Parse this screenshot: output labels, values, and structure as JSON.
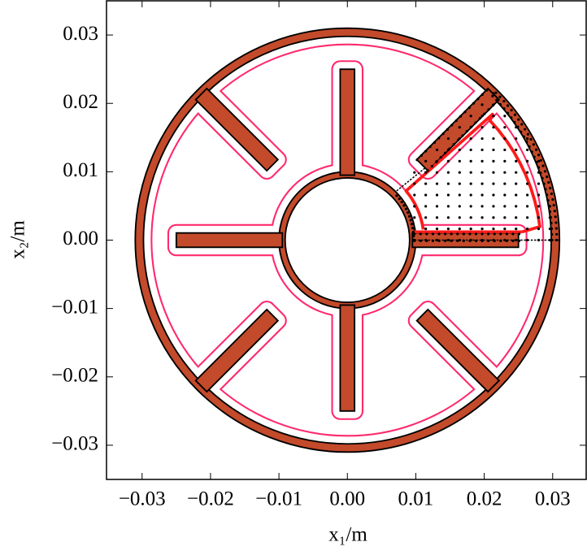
{
  "chart_data": {
    "type": "geometry",
    "xlabel": "x₁/m",
    "ylabel": "x₂/m",
    "xlim": [
      -0.0352,
      0.0349
    ],
    "ylim": [
      -0.035,
      0.035
    ],
    "xticks": [
      {
        "value": -0.03,
        "label": "−0.03"
      },
      {
        "value": -0.02,
        "label": "−0.02"
      },
      {
        "value": -0.01,
        "label": "−0.01"
      },
      {
        "value": 0,
        "label": "0.00"
      },
      0.01,
      0.02,
      0.03
    ],
    "yticks": [
      {
        "value": -0.03,
        "label": "−0.03"
      },
      {
        "value": -0.02,
        "label": "−0.02"
      },
      {
        "value": -0.01,
        "label": "−0.01"
      },
      {
        "value": 0,
        "label": "0.00"
      },
      0.01,
      0.02,
      0.03
    ]
  }
}
